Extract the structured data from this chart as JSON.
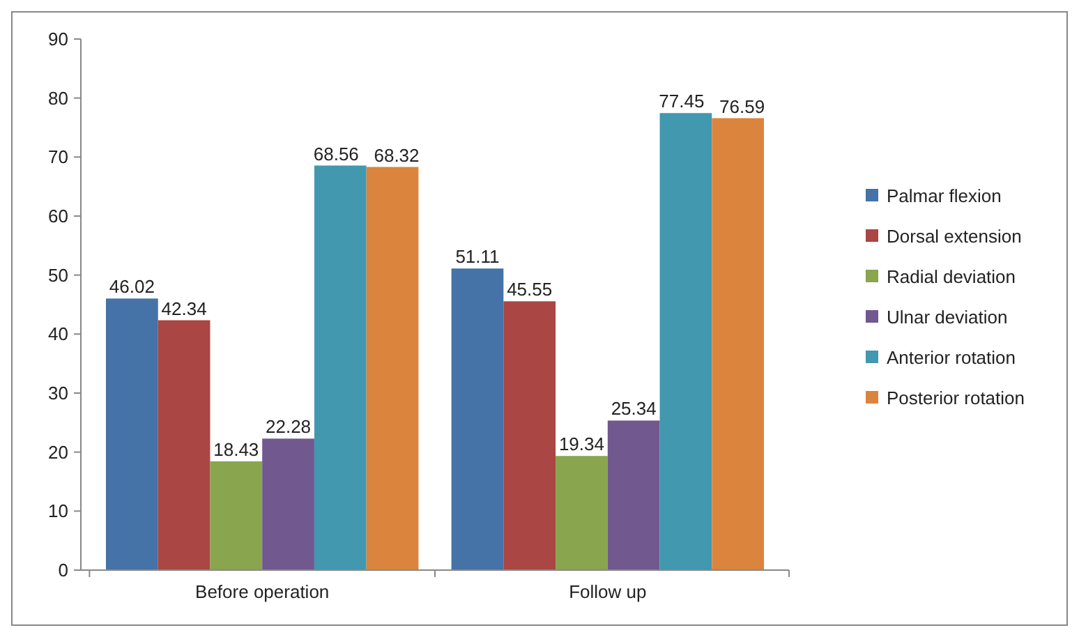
{
  "chart_data": {
    "type": "bar",
    "categories": [
      "Before operation",
      "Follow up"
    ],
    "series": [
      {
        "name": "Palmar flexion",
        "color": "#4572a7",
        "values": [
          46.02,
          51.11
        ]
      },
      {
        "name": "Dorsal extension",
        "color": "#aa4643",
        "values": [
          42.34,
          45.55
        ]
      },
      {
        "name": "Radial deviation",
        "color": "#89a54e",
        "values": [
          18.43,
          19.34
        ]
      },
      {
        "name": "Ulnar deviation",
        "color": "#71588f",
        "values": [
          22.28,
          25.34
        ]
      },
      {
        "name": "Anterior rotation",
        "color": "#4198af",
        "values": [
          68.56,
          77.45
        ]
      },
      {
        "name": "Posterior rotation",
        "color": "#db843d",
        "values": [
          68.32,
          76.59
        ]
      }
    ],
    "ylim": [
      0,
      90
    ],
    "yticks": [
      0,
      10,
      20,
      30,
      40,
      50,
      60,
      70,
      80,
      90
    ],
    "grid": false,
    "legend": "right",
    "data_labels": true
  }
}
